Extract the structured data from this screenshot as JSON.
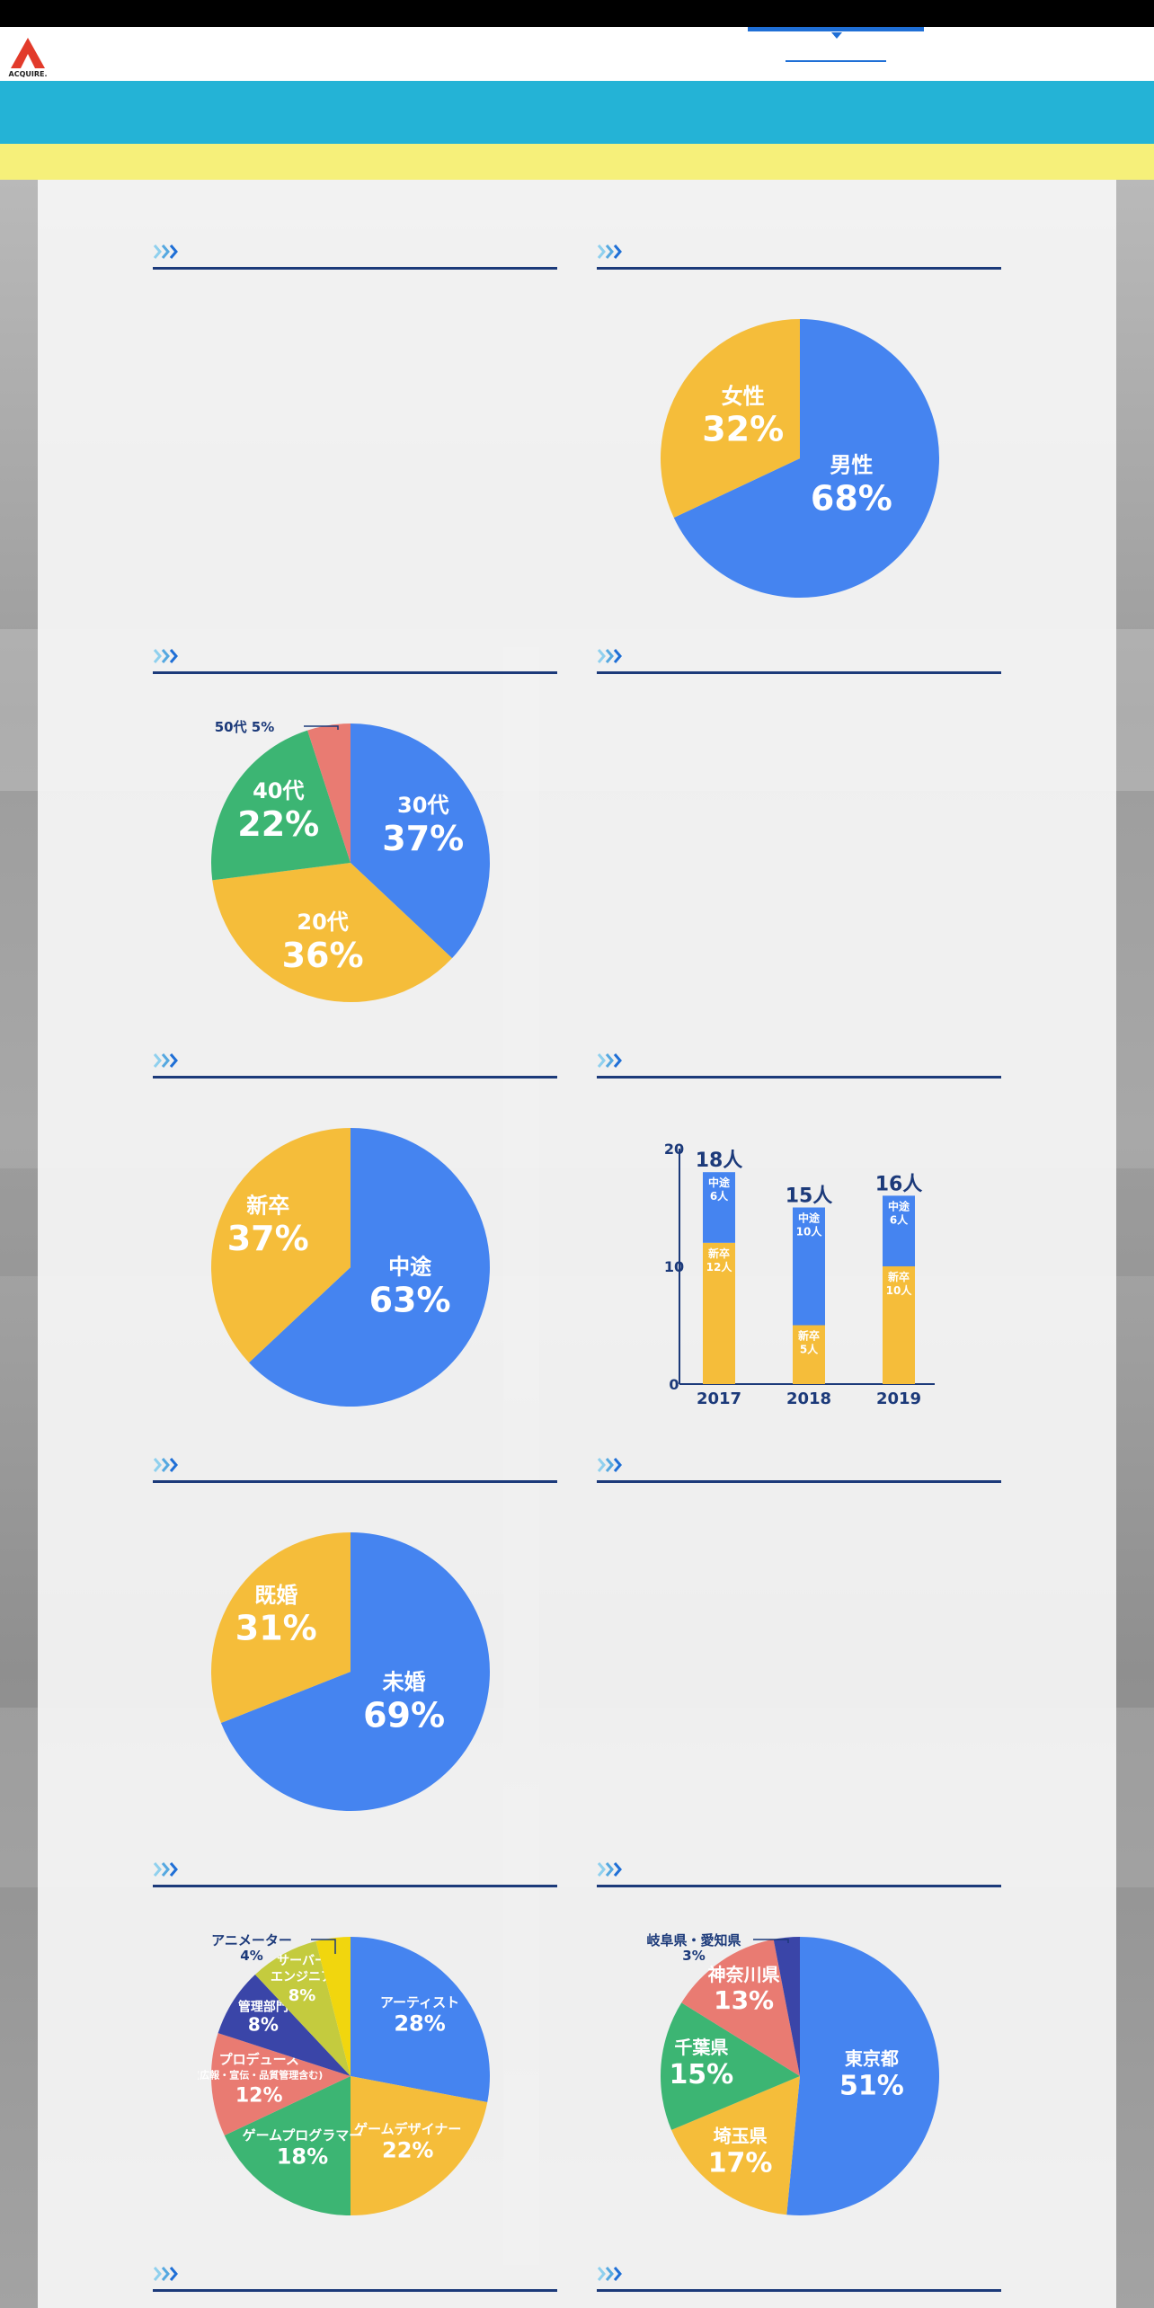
{
  "brand": {
    "logo_text": "ACQUIRE.",
    "logo_color": "#e23a2a"
  },
  "colors": {
    "header_cyan": "#24b3d6",
    "band_yellow": "#f6f07a",
    "rule_navy": "#1c3a7a",
    "blue": "#4584f0",
    "yellow": "#f5bd3a",
    "green": "#3cb573",
    "salmon": "#e97b72",
    "navy": "#3a45a8",
    "lime": "#c4cb3e",
    "gold": "#f1d60e"
  },
  "charts": {
    "gender": {
      "type": "pie",
      "slices": [
        {
          "name": "男性",
          "value": 68,
          "label": "68%",
          "color": "#4584f0"
        },
        {
          "name": "女性",
          "value": 32,
          "label": "32%",
          "color": "#f5bd3a"
        }
      ]
    },
    "age": {
      "type": "pie",
      "slices": [
        {
          "name": "30代",
          "value": 37,
          "label": "37%",
          "color": "#4584f0"
        },
        {
          "name": "20代",
          "value": 36,
          "label": "36%",
          "color": "#f5bd3a"
        },
        {
          "name": "40代",
          "value": 22,
          "label": "22%",
          "color": "#3cb573"
        },
        {
          "name": "50代",
          "value": 5,
          "label": "5%",
          "color": "#e97b72",
          "external": "50代 5%"
        }
      ]
    },
    "hire_type": {
      "type": "pie",
      "slices": [
        {
          "name": "中途",
          "value": 63,
          "label": "63%",
          "color": "#4584f0"
        },
        {
          "name": "新卒",
          "value": 37,
          "label": "37%",
          "color": "#f5bd3a"
        }
      ]
    },
    "hires_by_year": {
      "type": "bar",
      "stacked": true,
      "categories": [
        "2017",
        "2018",
        "2019"
      ],
      "totals": [
        "18人",
        "15人",
        "16人"
      ],
      "y_ticks": [
        "0",
        "10",
        "20"
      ],
      "ylim": [
        0,
        20
      ],
      "series": [
        {
          "name": "新卒",
          "values": [
            12,
            5,
            10
          ],
          "labels": [
            "12人",
            "5人",
            "10人"
          ],
          "color": "#f5bd3a"
        },
        {
          "name": "中途",
          "values": [
            6,
            10,
            6
          ],
          "labels": [
            "6人",
            "10人",
            "6人"
          ],
          "color": "#4584f0"
        }
      ]
    },
    "marital": {
      "type": "pie",
      "slices": [
        {
          "name": "未婚",
          "value": 69,
          "label": "69%",
          "color": "#4584f0"
        },
        {
          "name": "既婚",
          "value": 31,
          "label": "31%",
          "color": "#f5bd3a"
        }
      ]
    },
    "occupation": {
      "type": "pie",
      "slices": [
        {
          "name": "アーティスト",
          "value": 28,
          "label": "28%",
          "color": "#4584f0"
        },
        {
          "name": "ゲームデザイナー",
          "value": 22,
          "label": "22%",
          "color": "#f5bd3a"
        },
        {
          "name": "ゲームプログラマー",
          "value": 18,
          "label": "18%",
          "color": "#3cb573"
        },
        {
          "name": "プロデュース",
          "sub": "(広報・宣伝・品質管理含む)",
          "value": 12,
          "label": "12%",
          "color": "#e97b72"
        },
        {
          "name": "管理部門",
          "value": 8,
          "label": "8%",
          "color": "#3a45a8"
        },
        {
          "name": "サーバーエンジニア",
          "line1": "サーバー",
          "line2": "エンジニア",
          "value": 8,
          "label": "8%",
          "color": "#c4cb3e"
        },
        {
          "name": "アニメーター",
          "value": 4,
          "label": "4%",
          "color": "#f1d60e",
          "external": "アニメーター"
        }
      ]
    },
    "residence": {
      "type": "pie",
      "slices": [
        {
          "name": "東京都",
          "value": 51,
          "label": "51%",
          "color": "#4584f0"
        },
        {
          "name": "埼玉県",
          "value": 17,
          "label": "17%",
          "color": "#f5bd3a"
        },
        {
          "name": "千葉県",
          "value": 15,
          "label": "15%",
          "color": "#3cb573"
        },
        {
          "name": "神奈川県",
          "value": 13,
          "label": "13%",
          "color": "#e97b72"
        },
        {
          "name": "岐阜県・愛知県",
          "value": 3,
          "label": "3%",
          "color": "#3a45a8",
          "external": "岐阜県・愛知県"
        }
      ]
    }
  }
}
